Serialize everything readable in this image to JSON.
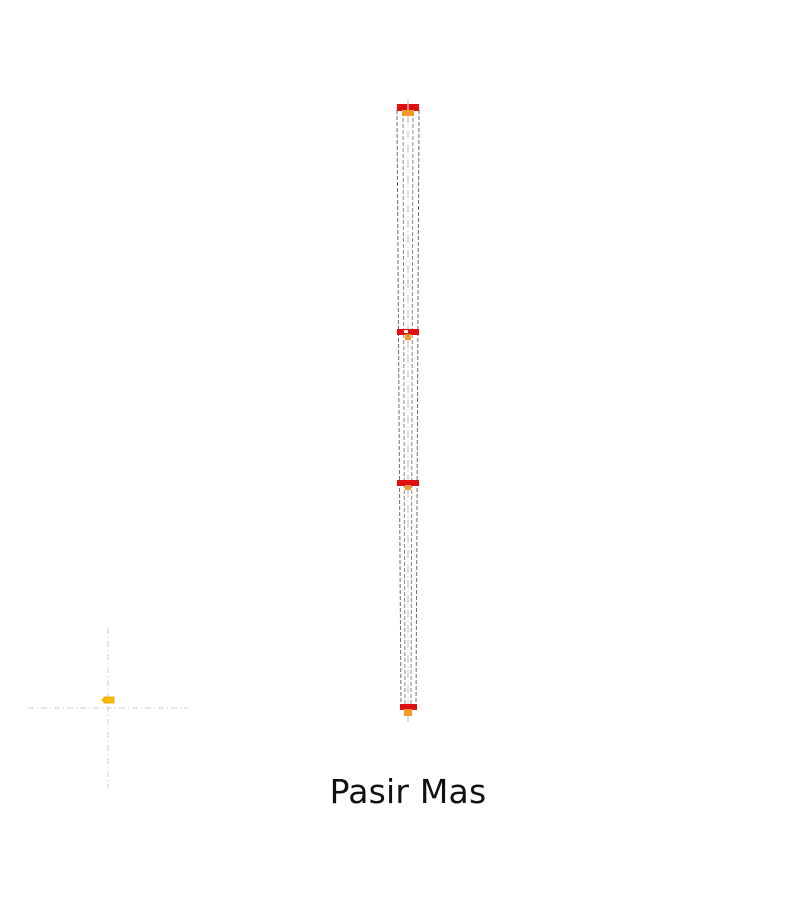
{
  "caption": "Pasir Mas",
  "colors": {
    "background": "#ffffff",
    "outline": "#6e6e6e",
    "centerline": "#bdbdbd",
    "marker_red": "#e01010",
    "marker_orange": "#f29a2e",
    "node_yellow": "#ffc000",
    "crosshair": "#cfcfcf"
  },
  "diagram": {
    "marker_count": 4,
    "icons": [
      "section-marker-icon",
      "origin-node-icon",
      "crosshair-icon"
    ]
  }
}
